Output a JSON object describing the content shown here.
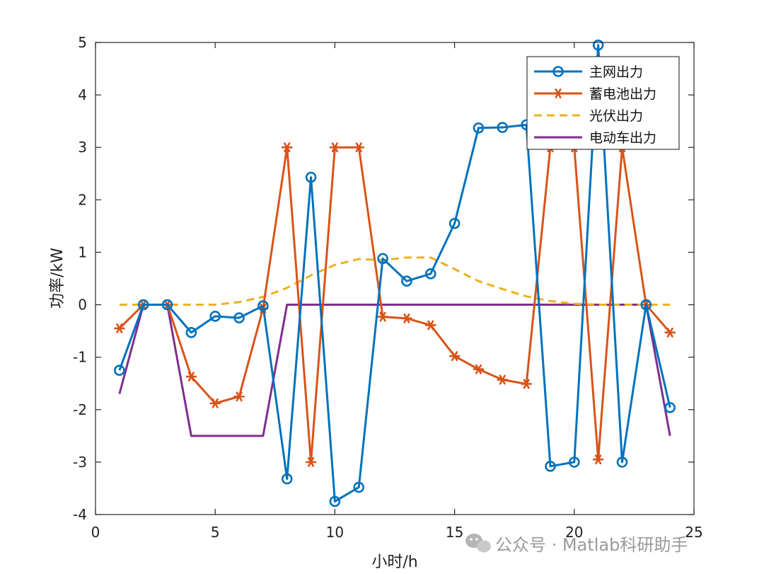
{
  "chart_data": {
    "type": "line",
    "title": "",
    "xlabel": "小时/h",
    "ylabel": "功率/kW",
    "xlim": [
      0,
      25
    ],
    "ylim": [
      -4,
      5
    ],
    "xticks": [
      0,
      5,
      10,
      15,
      20,
      25
    ],
    "yticks": [
      -4,
      -3,
      -2,
      -1,
      0,
      1,
      2,
      3,
      4,
      5
    ],
    "grid": false,
    "legend_position": "top-right",
    "x": [
      1,
      2,
      3,
      4,
      5,
      6,
      7,
      8,
      9,
      10,
      11,
      12,
      13,
      14,
      15,
      16,
      17,
      18,
      19,
      20,
      21,
      22,
      23,
      24
    ],
    "series": [
      {
        "name": "主网出力",
        "color": "#0072BD",
        "marker": "circle",
        "style": "solid",
        "values": [
          -1.25,
          0,
          0,
          -0.53,
          -0.22,
          -0.25,
          -0.02,
          -3.32,
          2.43,
          -3.75,
          -3.48,
          0.88,
          0.45,
          0.59,
          1.55,
          3.37,
          3.38,
          3.43,
          -3.08,
          -3.0,
          4.95,
          -3.0,
          0,
          -1.96
        ]
      },
      {
        "name": "蓄电池出力",
        "color": "#D95319",
        "marker": "star",
        "style": "solid",
        "values": [
          -0.45,
          0,
          0,
          -1.37,
          -1.88,
          -1.75,
          -0.07,
          3.0,
          -3.0,
          3.0,
          3.0,
          -0.23,
          -0.26,
          -0.39,
          -0.98,
          -1.23,
          -1.43,
          -1.51,
          3.0,
          3.0,
          -2.95,
          3.0,
          0,
          -0.53
        ]
      },
      {
        "name": "光伏出力",
        "color": "#EDB120",
        "marker": "none",
        "style": "dashed",
        "values": [
          0,
          0,
          0,
          0,
          0,
          0.05,
          0.15,
          0.32,
          0.56,
          0.76,
          0.87,
          0.85,
          0.9,
          0.9,
          0.68,
          0.45,
          0.3,
          0.16,
          0.07,
          0.02,
          0,
          0,
          0,
          0
        ]
      },
      {
        "name": "电动车出力",
        "color": "#7E2F8E",
        "marker": "none",
        "style": "solid",
        "values": [
          -1.7,
          0,
          0,
          -2.5,
          -2.5,
          -2.5,
          -2.5,
          0,
          0,
          0,
          0,
          0,
          0,
          0,
          0,
          0,
          0,
          0,
          0,
          0,
          0,
          0,
          0,
          -2.5
        ]
      }
    ]
  },
  "watermark": {
    "icon": "wechat-icon",
    "text": "公众号 · Matlab科研助手"
  }
}
